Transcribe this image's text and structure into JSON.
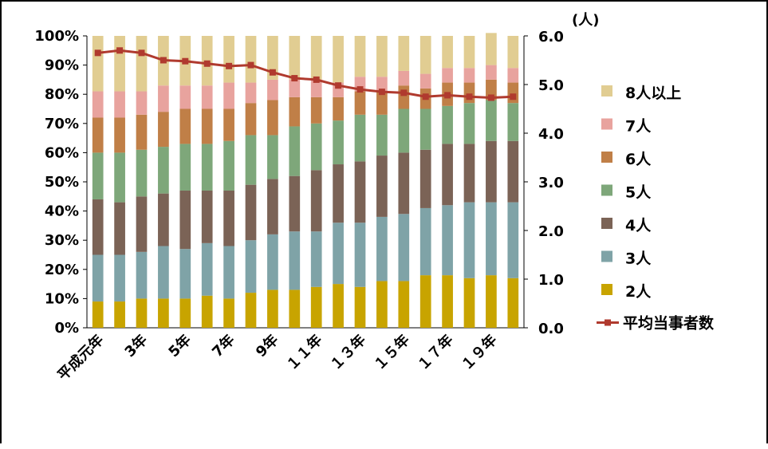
{
  "chart_data": {
    "type": "bar",
    "stacked": true,
    "categories": [
      "平成元年",
      "2年",
      "3年",
      "4年",
      "5年",
      "6年",
      "7年",
      "8年",
      "9年",
      "10年",
      "11年",
      "12年",
      "13年",
      "14年",
      "15年",
      "16年",
      "17年",
      "18年",
      "19年",
      "20年"
    ],
    "x_tick_labels": [
      "平成元年",
      "3年",
      "5年",
      "7年",
      "9年",
      "１１年",
      "１３年",
      "１５年",
      "１７年",
      "１９年"
    ],
    "y_left": {
      "ticks": [
        "0%",
        "10%",
        "20%",
        "30%",
        "40%",
        "50%",
        "60%",
        "70%",
        "80%",
        "90%",
        "100%"
      ],
      "ylim": [
        0,
        100
      ]
    },
    "y_right": {
      "ticks": [
        "0.0",
        "1.0",
        "2.0",
        "3.0",
        "4.0",
        "5.0",
        "6.0"
      ],
      "ylim": [
        0,
        6
      ],
      "unit": "(人)"
    },
    "series": [
      {
        "name": "2人",
        "color": "#c8a400",
        "values": [
          9,
          9,
          10,
          10,
          10,
          11,
          10,
          12,
          13,
          13,
          14,
          15,
          14,
          16,
          16,
          18,
          18,
          17,
          18,
          17
        ]
      },
      {
        "name": "3人",
        "color": "#7fa3a7",
        "values": [
          16,
          16,
          16,
          18,
          17,
          18,
          18,
          18,
          19,
          20,
          19,
          21,
          22,
          22,
          23,
          23,
          24,
          26,
          25,
          26
        ]
      },
      {
        "name": "4人",
        "color": "#7b6356",
        "values": [
          19,
          18,
          19,
          18,
          20,
          18,
          19,
          19,
          19,
          19,
          21,
          20,
          21,
          21,
          21,
          20,
          21,
          20,
          21,
          21
        ]
      },
      {
        "name": "5人",
        "color": "#7ea77a",
        "values": [
          16,
          17,
          16,
          16,
          16,
          16,
          17,
          17,
          15,
          17,
          16,
          15,
          16,
          14,
          15,
          14,
          13,
          14,
          14,
          13
        ]
      },
      {
        "name": "6人",
        "color": "#c07f47",
        "values": [
          12,
          12,
          12,
          12,
          12,
          12,
          11,
          11,
          12,
          10,
          9,
          8,
          8,
          8,
          8,
          7,
          8,
          7,
          7,
          7
        ]
      },
      {
        "name": "7人",
        "color": "#e8a39e",
        "values": [
          9,
          9,
          8,
          9,
          8,
          8,
          9,
          7,
          7,
          6,
          6,
          5,
          5,
          5,
          5,
          5,
          5,
          5,
          5,
          5
        ]
      },
      {
        "name": "8人以上",
        "color": "#e1cd92",
        "values": [
          19,
          19,
          19,
          17,
          17,
          17,
          16,
          16,
          15,
          15,
          15,
          16,
          14,
          14,
          12,
          13,
          11,
          11,
          11,
          11
        ]
      }
    ],
    "line": {
      "name": "平均当事者数",
      "color": "#b03a2e",
      "values": [
        5.65,
        5.7,
        5.65,
        5.5,
        5.48,
        5.43,
        5.38,
        5.4,
        5.25,
        5.13,
        5.1,
        4.98,
        4.9,
        4.85,
        4.83,
        4.75,
        4.78,
        4.75,
        4.73,
        4.75
      ]
    },
    "legend_position": "right"
  }
}
